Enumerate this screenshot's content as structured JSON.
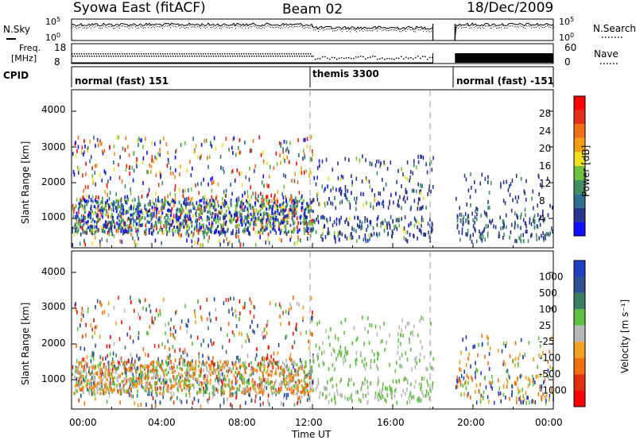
{
  "header": {
    "left": "Syowa East (fitACF)",
    "center": "Beam 02",
    "right": "18/Dec/2009"
  },
  "aux": {
    "nsky_label": "N.Sky",
    "nsearch_label": "N.Search",
    "freq_label_1": "Freq.",
    "freq_label_2": "[MHz]",
    "nave_label": "Nave",
    "cpid_label": "CPID",
    "noise_ticks_left": [
      "10^5",
      "10^0"
    ],
    "noise_ticks_right": [
      "10^5",
      "10^0"
    ],
    "freq_ticks": [
      "18",
      "8"
    ],
    "nave_ticks": [
      "60",
      "0"
    ]
  },
  "cpid_segments": [
    {
      "label": "normal (fast) 151",
      "start_h": 0,
      "end_h": 12
    },
    {
      "label": "themis 3300",
      "start_h": 12,
      "end_h": 19
    },
    {
      "label": "normal (fast) -151",
      "start_h": 19,
      "end_h": 24
    }
  ],
  "chart_data": [
    {
      "type": "heatmap",
      "name": "power",
      "ylabel": "Slant Range [km]",
      "xlabel": "Time UT",
      "xlim_hours": [
        0,
        24
      ],
      "ylim_km": [
        180,
        4600
      ],
      "xticks": [
        "00:00",
        "04:00",
        "08:00",
        "12:00",
        "16:00",
        "20:00",
        "00:00"
      ],
      "yticks": [
        1000,
        2000,
        3000,
        4000
      ],
      "colorbar": {
        "label": "Power [dB]",
        "ticks": [
          "4",
          "8",
          "12",
          "16",
          "20",
          "24",
          "28"
        ],
        "colors": [
          "#1010ff",
          "#28358f",
          "#2d6f8c",
          "#3f8f60",
          "#6fc03f",
          "#f0e020",
          "#f0a010",
          "#f07018",
          "#e03018",
          "#ff0000"
        ]
      }
    },
    {
      "type": "heatmap",
      "name": "velocity",
      "ylabel": "Slant Range [km]",
      "xlabel": "Time UT",
      "xlim_hours": [
        0,
        24
      ],
      "ylim_km": [
        180,
        4600
      ],
      "xticks": [
        "00:00",
        "04:00",
        "08:00",
        "12:00",
        "16:00",
        "20:00",
        "00:00"
      ],
      "yticks": [
        1000,
        2000,
        3000,
        4000
      ],
      "colorbar": {
        "label": "Velocity [m s⁻¹]",
        "ticks": [
          "1000",
          "500",
          "100",
          "25",
          "-25",
          "-100",
          "-500",
          "-1000"
        ],
        "colors": [
          "#2040c0",
          "#2f5090",
          "#3a8060",
          "#5fc040",
          "#b8b8b8",
          "#f0a020",
          "#f07010",
          "#e03010",
          "#ff0000"
        ]
      }
    }
  ],
  "colors": {
    "axis": "#000000",
    "dash": "#9a9a9a"
  }
}
